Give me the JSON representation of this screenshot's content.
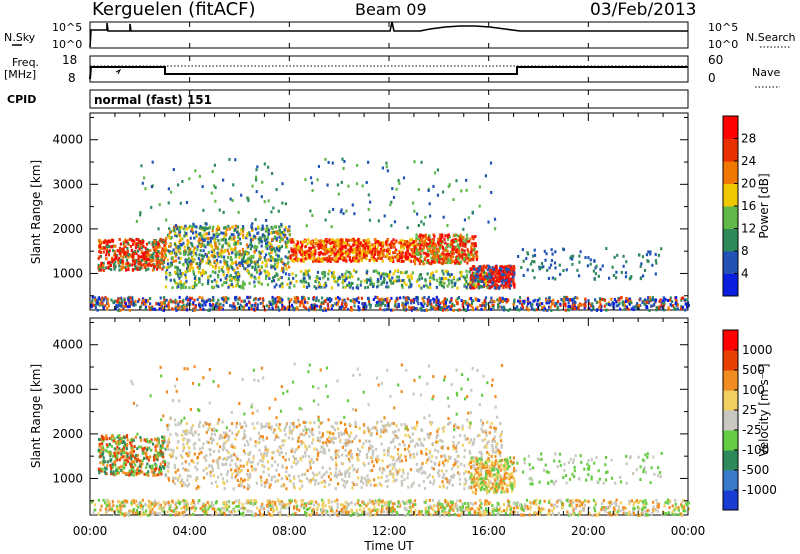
{
  "header": {
    "station": "Kerguelen (fitACF)",
    "beam": "Beam 09",
    "date": "03/Feb/2013"
  },
  "strips": {
    "nsky_label": "N.Sky",
    "nsky_ticks": [
      "10^5",
      "10^0"
    ],
    "nsearch_label": "N.Search",
    "nsearch_ticks": [
      "10^5",
      "10^0"
    ],
    "freq_label": "Freq.",
    "freq_unit": "[MHz]",
    "freq_ticks": [
      "18",
      "8"
    ],
    "nave_label": "Nave",
    "nave_ticks": [
      "60",
      "0"
    ],
    "cpid_label": "CPID",
    "cpid_value": "normal (fast) 151"
  },
  "chart_data": [
    {
      "type": "heatmap",
      "panel": "power",
      "ylabel": "Slant Range [km]",
      "y_ticks": [
        "1000",
        "2000",
        "3000",
        "4000"
      ],
      "ylim": [
        180,
        4600
      ],
      "xlim": [
        0,
        24
      ],
      "colorbar_label": "Power [dB]",
      "colorbar_ticks": [
        "4",
        "8",
        "12",
        "16",
        "20",
        "24",
        "28"
      ],
      "colorbar_colors": [
        "#0a1ee0",
        "#2252b4",
        "#2e8a5a",
        "#5fb848",
        "#f0c800",
        "#f07800",
        "#e83000",
        "#ff0000"
      ]
    },
    {
      "type": "heatmap",
      "panel": "velocity",
      "ylabel": "Slant Range [km]",
      "y_ticks": [
        "1000",
        "2000",
        "3000",
        "4000"
      ],
      "ylim": [
        180,
        4600
      ],
      "xlim": [
        0,
        24
      ],
      "xlabel": "Time UT",
      "x_ticks": [
        "00:00",
        "04:00",
        "08:00",
        "12:00",
        "16:00",
        "20:00",
        "00:00"
      ],
      "colorbar_label": "Velocity [m s⁻¹]",
      "colorbar_ticks": [
        "1000",
        "500",
        "100",
        "25",
        "-25",
        "-100",
        "-500",
        "-1000"
      ],
      "colorbar_colors": [
        "#1a3cd2",
        "#3a7acc",
        "#2e8a5a",
        "#66cc44",
        "#c8c8c0",
        "#f0d060",
        "#f08c20",
        "#e84000",
        "#ff0000"
      ]
    }
  ]
}
